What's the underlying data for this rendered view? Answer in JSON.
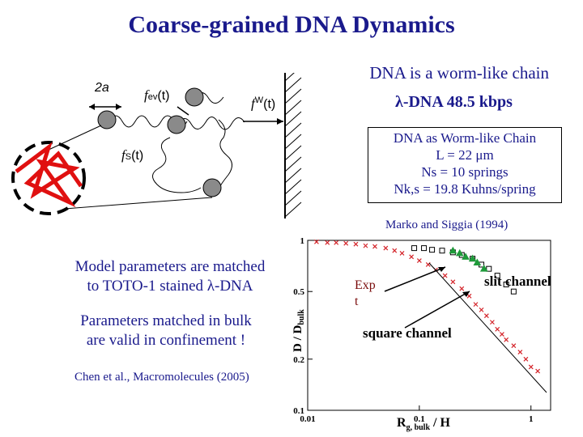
{
  "title": "Coarse-grained DNA Dynamics",
  "worm_chain": "DNA is a worm-like chain",
  "lambda_dna": "λ-DNA 48.5 kbps",
  "box": {
    "line1": "DNA as Worm-like Chain",
    "line2": "L = 22 μm",
    "line3": "Ns = 10 springs",
    "line4": "Nk,s = 19.8 Kuhns/spring"
  },
  "reference": "Marko and Siggia (1994)",
  "model_text": [
    "Model parameters are matched",
    "to TOTO-1 stained λ-DNA"
  ],
  "bulk_text": [
    "Parameters matched in bulk",
    "are valid in confinement !"
  ],
  "citation": "Chen et al., Macromolecules (2005)",
  "schematic": {
    "label_2a": "2a",
    "label_fev": "f",
    "label_fev_sub": "ev",
    "label_fev_t": "(t)",
    "label_fw": "f",
    "label_fw_sup": "W",
    "label_fw_t": "(t)",
    "label_fs": "f",
    "label_fs_sub": "S",
    "label_fs_t": "(t)"
  },
  "plot": {
    "ylabel": "D / D",
    "ylabel_sub": "bulk",
    "xlabel": "R",
    "xlabel_sub": "g, bulk",
    "xlabel_tail": " / H",
    "y_ticks": [
      "1",
      "0.5",
      "0.2",
      "0.1"
    ],
    "x_ticks": [
      "0.01",
      "0.1",
      "1"
    ],
    "ann_exp": "Exp",
    "ann_t": "t",
    "ann_slit": "slit channel",
    "ann_square": "square channel"
  },
  "chart_data": {
    "type": "scatter",
    "xlabel": "Rg, bulk / H",
    "ylabel": "D / Dbulk",
    "x_log": true,
    "y_log": true,
    "xlim": [
      0.01,
      1.5
    ],
    "ylim": [
      0.1,
      1
    ],
    "series": [
      {
        "name": "square channel",
        "marker": "x",
        "color": "#d4242a",
        "x": [
          0.012,
          0.015,
          0.018,
          0.022,
          0.027,
          0.033,
          0.04,
          0.05,
          0.06,
          0.07,
          0.085,
          0.1,
          0.12,
          0.14,
          0.17,
          0.2,
          0.24,
          0.28,
          0.32,
          0.36,
          0.4,
          0.45,
          0.5,
          0.55,
          0.6,
          0.7,
          0.8,
          0.9,
          1.0,
          1.15
        ],
        "y": [
          0.98,
          0.97,
          0.97,
          0.96,
          0.95,
          0.93,
          0.92,
          0.9,
          0.87,
          0.84,
          0.8,
          0.76,
          0.72,
          0.67,
          0.62,
          0.57,
          0.52,
          0.47,
          0.42,
          0.39,
          0.36,
          0.33,
          0.3,
          0.28,
          0.26,
          0.24,
          0.22,
          0.2,
          0.18,
          0.17
        ]
      },
      {
        "name": "slit channel",
        "marker": "square",
        "color": "#000000",
        "x": [
          0.09,
          0.11,
          0.13,
          0.16,
          0.2,
          0.24,
          0.3,
          0.36,
          0.42,
          0.5,
          0.6,
          0.7
        ],
        "y": [
          0.9,
          0.9,
          0.88,
          0.87,
          0.85,
          0.82,
          0.78,
          0.72,
          0.68,
          0.62,
          0.55,
          0.5
        ]
      },
      {
        "name": "Exp",
        "marker": "triangle",
        "color": "#1f9a3a",
        "x": [
          0.2,
          0.23,
          0.26,
          0.3,
          0.33,
          0.38
        ],
        "y": [
          0.87,
          0.84,
          0.8,
          0.78,
          0.74,
          0.68
        ]
      }
    ]
  }
}
